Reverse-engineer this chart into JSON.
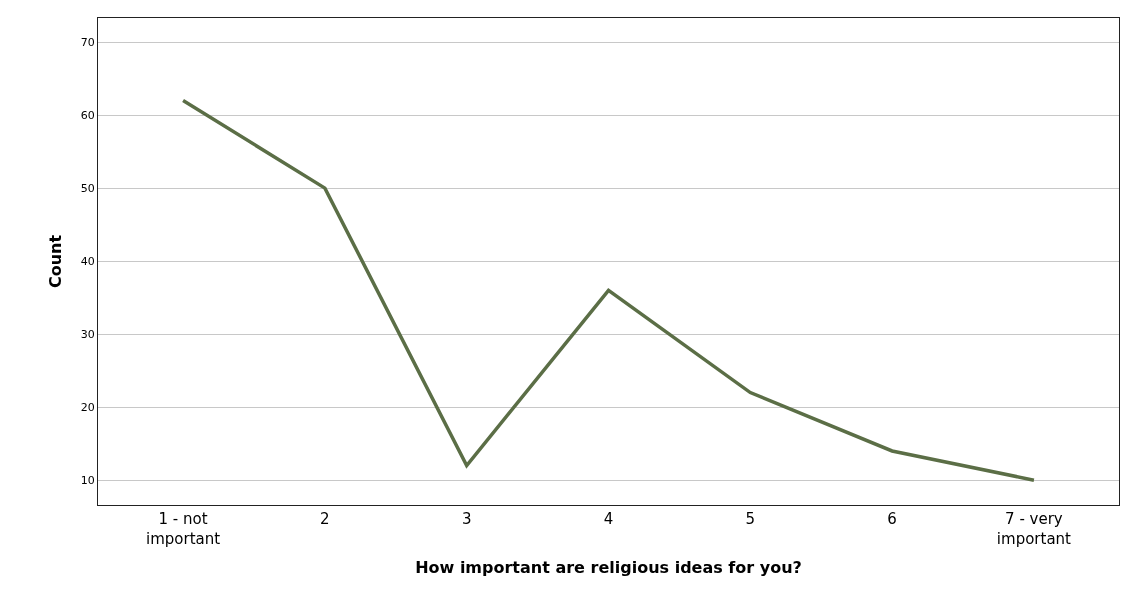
{
  "chart_data": {
    "type": "line",
    "xlabel": "How important are religious ideas for you?",
    "ylabel": "Count",
    "categories": [
      "1 - not\nimportant",
      "2",
      "3",
      "4",
      "5",
      "6",
      "7 - very\nimportant"
    ],
    "series": [
      {
        "color": "#5b6e46",
        "values": [
          62,
          50,
          12,
          36,
          22,
          14,
          10
        ]
      }
    ],
    "ylim": [
      6.6,
      73.3
    ],
    "yticks": [
      10,
      20,
      30,
      40,
      50,
      60,
      70
    ],
    "grid": "y",
    "legend": false,
    "marker": "none",
    "line_style": "solid"
  }
}
